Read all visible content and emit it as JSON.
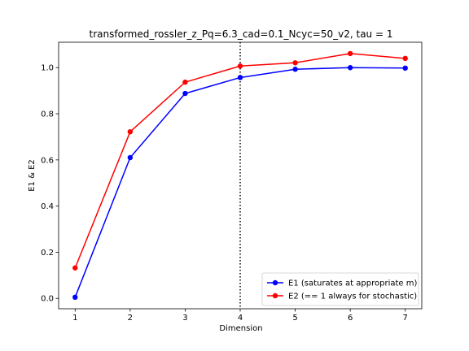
{
  "chart_data": {
    "type": "line",
    "title": "transformed_rossler_z_Pq=6.3_cad=0.1_Ncyc=50_v2, tau = 1",
    "xlabel": "Dimension",
    "ylabel": "E1 & E2",
    "x": [
      1,
      2,
      3,
      4,
      5,
      6,
      7
    ],
    "xticks": [
      1,
      2,
      3,
      4,
      5,
      6,
      7
    ],
    "yticks": [
      0.0,
      0.2,
      0.4,
      0.6,
      0.8,
      1.0
    ],
    "xlim": [
      0.7,
      7.3
    ],
    "ylim": [
      -0.045,
      1.11
    ],
    "grid": false,
    "legend_position": "lower-right",
    "vline": {
      "x": 4,
      "style": "dotted",
      "color": "#000000"
    },
    "series": [
      {
        "name": "E1 (saturates at appropriate m)",
        "color": "#0000ff",
        "marker": "circle",
        "values": [
          0.005,
          0.61,
          0.888,
          0.957,
          0.993,
          1.0,
          0.998
        ]
      },
      {
        "name": "E2 (== 1 always for stochastic)",
        "color": "#ff0000",
        "marker": "circle",
        "values": [
          0.132,
          0.722,
          0.937,
          1.007,
          1.021,
          1.061,
          1.04
        ]
      }
    ]
  }
}
